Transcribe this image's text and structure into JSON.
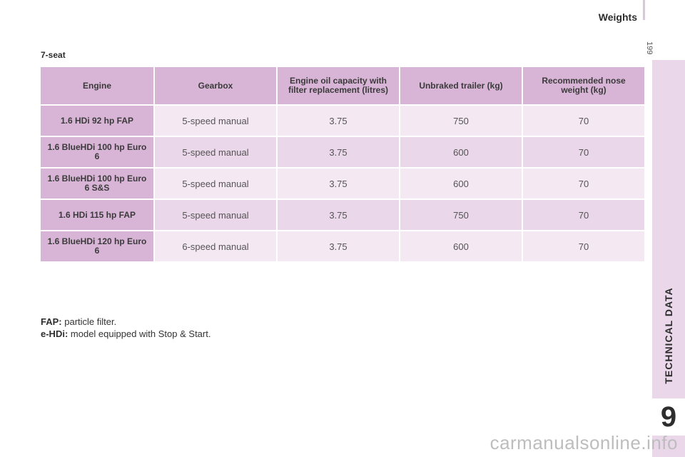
{
  "header": {
    "title": "Weights",
    "page_number": "199"
  },
  "sidebar": {
    "section_label": "TECHNICAL DATA",
    "chapter_number": "9"
  },
  "section_title": "7-seat",
  "table": {
    "columns": [
      "Engine",
      "Gearbox",
      "Engine oil capacity with filter replacement (litres)",
      "Unbraked trailer (kg)",
      "Recommended nose weight (kg)"
    ],
    "rows": [
      [
        "1.6 HDi 92 hp FAP",
        "5-speed manual",
        "3.75",
        "750",
        "70"
      ],
      [
        "1.6 BlueHDi 100 hp Euro 6",
        "5-speed manual",
        "3.75",
        "600",
        "70"
      ],
      [
        "1.6 BlueHDi 100 hp Euro 6 S&S",
        "5-speed manual",
        "3.75",
        "600",
        "70"
      ],
      [
        "1.6 HDi 115 hp FAP",
        "5-speed manual",
        "3.75",
        "750",
        "70"
      ],
      [
        "1.6 BlueHDi 120 hp Euro 6",
        "6-speed manual",
        "3.75",
        "600",
        "70"
      ]
    ]
  },
  "footnotes": [
    {
      "term": "FAP:",
      "text": "particle filter."
    },
    {
      "term": "e-HDi:",
      "text": "model equipped with Stop & Start."
    }
  ],
  "watermark": "carmanualsonline.info"
}
